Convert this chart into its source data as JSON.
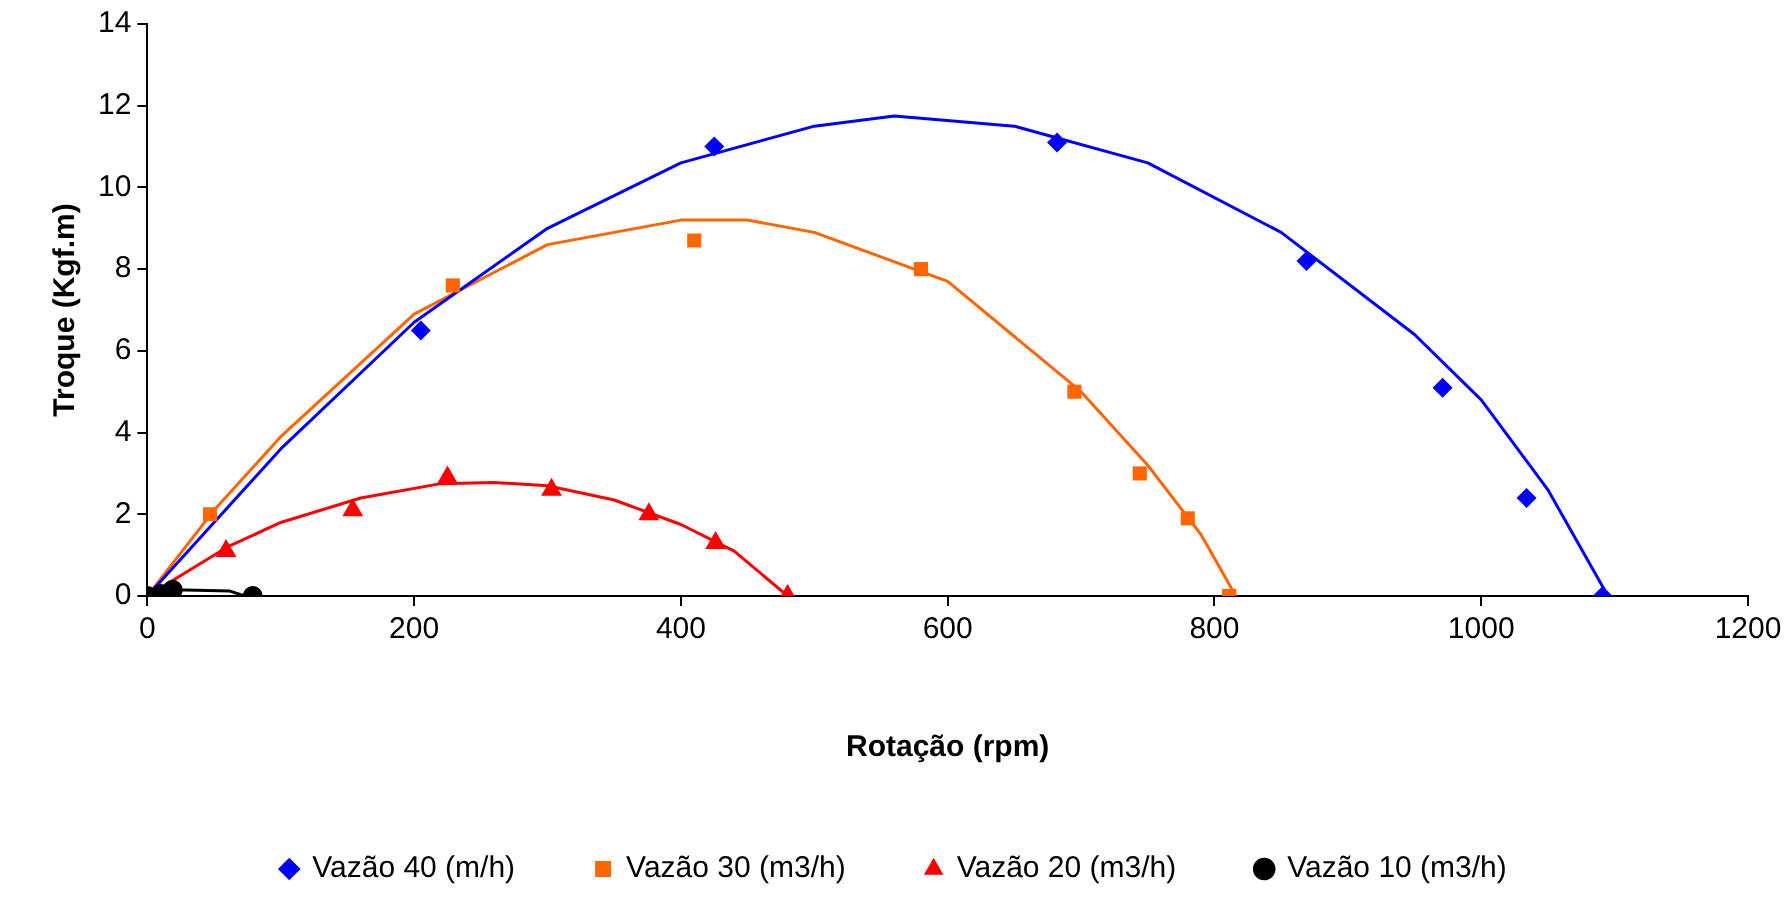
{
  "chart_data": {
    "type": "scatter",
    "xlabel": "Rotação (rpm)",
    "ylabel": "Troque (Kgf.m)",
    "xlim": [
      0,
      1200
    ],
    "xticks": [
      0,
      200,
      400,
      600,
      800,
      1000,
      1200
    ],
    "ylim": [
      0,
      14
    ],
    "yticks": [
      0,
      2,
      4,
      6,
      8,
      10,
      12,
      14
    ],
    "grid": false,
    "legend": "bottom",
    "series": [
      {
        "name": "Vazão 40 (m/h)",
        "marker": "diamond",
        "color": "#0000ff",
        "x": [
          205,
          425,
          682,
          869,
          971,
          1034,
          1091
        ],
        "values": [
          6.5,
          11,
          11.1,
          8.2,
          5.1,
          2.4,
          0
        ]
      },
      {
        "name": "Vazão 30 (m3/h)",
        "marker": "square",
        "color": "#ff6600",
        "x": [
          47,
          229,
          410,
          580,
          695,
          744,
          780,
          811
        ],
        "values": [
          2,
          7.6,
          8.7,
          8,
          5,
          3,
          1.9,
          0
        ]
      },
      {
        "name": "Vazão 20 (m3/h)",
        "marker": "triangle",
        "color": "#ff0000",
        "x": [
          59,
          154,
          225,
          303,
          376,
          426,
          480
        ],
        "values": [
          1.1,
          2.1,
          2.9,
          2.6,
          2,
          1.3,
          0
        ]
      },
      {
        "name": "Vazão 10 (m3/h)",
        "marker": "circle",
        "color": "#000000",
        "x": [
          0,
          10,
          19,
          79
        ],
        "values": [
          0,
          0.05,
          0.15,
          0
        ]
      },
      {
        "type": "line",
        "marker": "none",
        "color": "#0000ff",
        "x": [
          0,
          100,
          200,
          300,
          400,
          500,
          560,
          650,
          750,
          850,
          950,
          1000,
          1050,
          1095
        ],
        "values": [
          0,
          3.6,
          6.7,
          9,
          10.6,
          11.5,
          11.75,
          11.5,
          10.6,
          8.9,
          6.4,
          4.8,
          2.6,
          0
        ]
      },
      {
        "type": "line",
        "marker": "none",
        "color": "#ff6600",
        "x": [
          0,
          50,
          100,
          200,
          300,
          400,
          450,
          500,
          600,
          700,
          750,
          790,
          816
        ],
        "values": [
          0,
          2.1,
          3.9,
          6.9,
          8.6,
          9.2,
          9.2,
          8.9,
          7.7,
          5,
          3.2,
          1.5,
          0
        ]
      },
      {
        "type": "line",
        "marker": "none",
        "color": "#ff0000",
        "x": [
          0,
          60,
          100,
          160,
          220,
          260,
          300,
          350,
          400,
          440,
          480
        ],
        "values": [
          0,
          1.2,
          1.8,
          2.4,
          2.75,
          2.78,
          2.7,
          2.35,
          1.75,
          1.1,
          0
        ]
      },
      {
        "type": "line",
        "marker": "none",
        "color": "#000000",
        "x": [
          0,
          20,
          62,
          70,
          79
        ],
        "values": [
          0,
          0.15,
          0.12,
          0.03,
          0
        ]
      }
    ]
  }
}
